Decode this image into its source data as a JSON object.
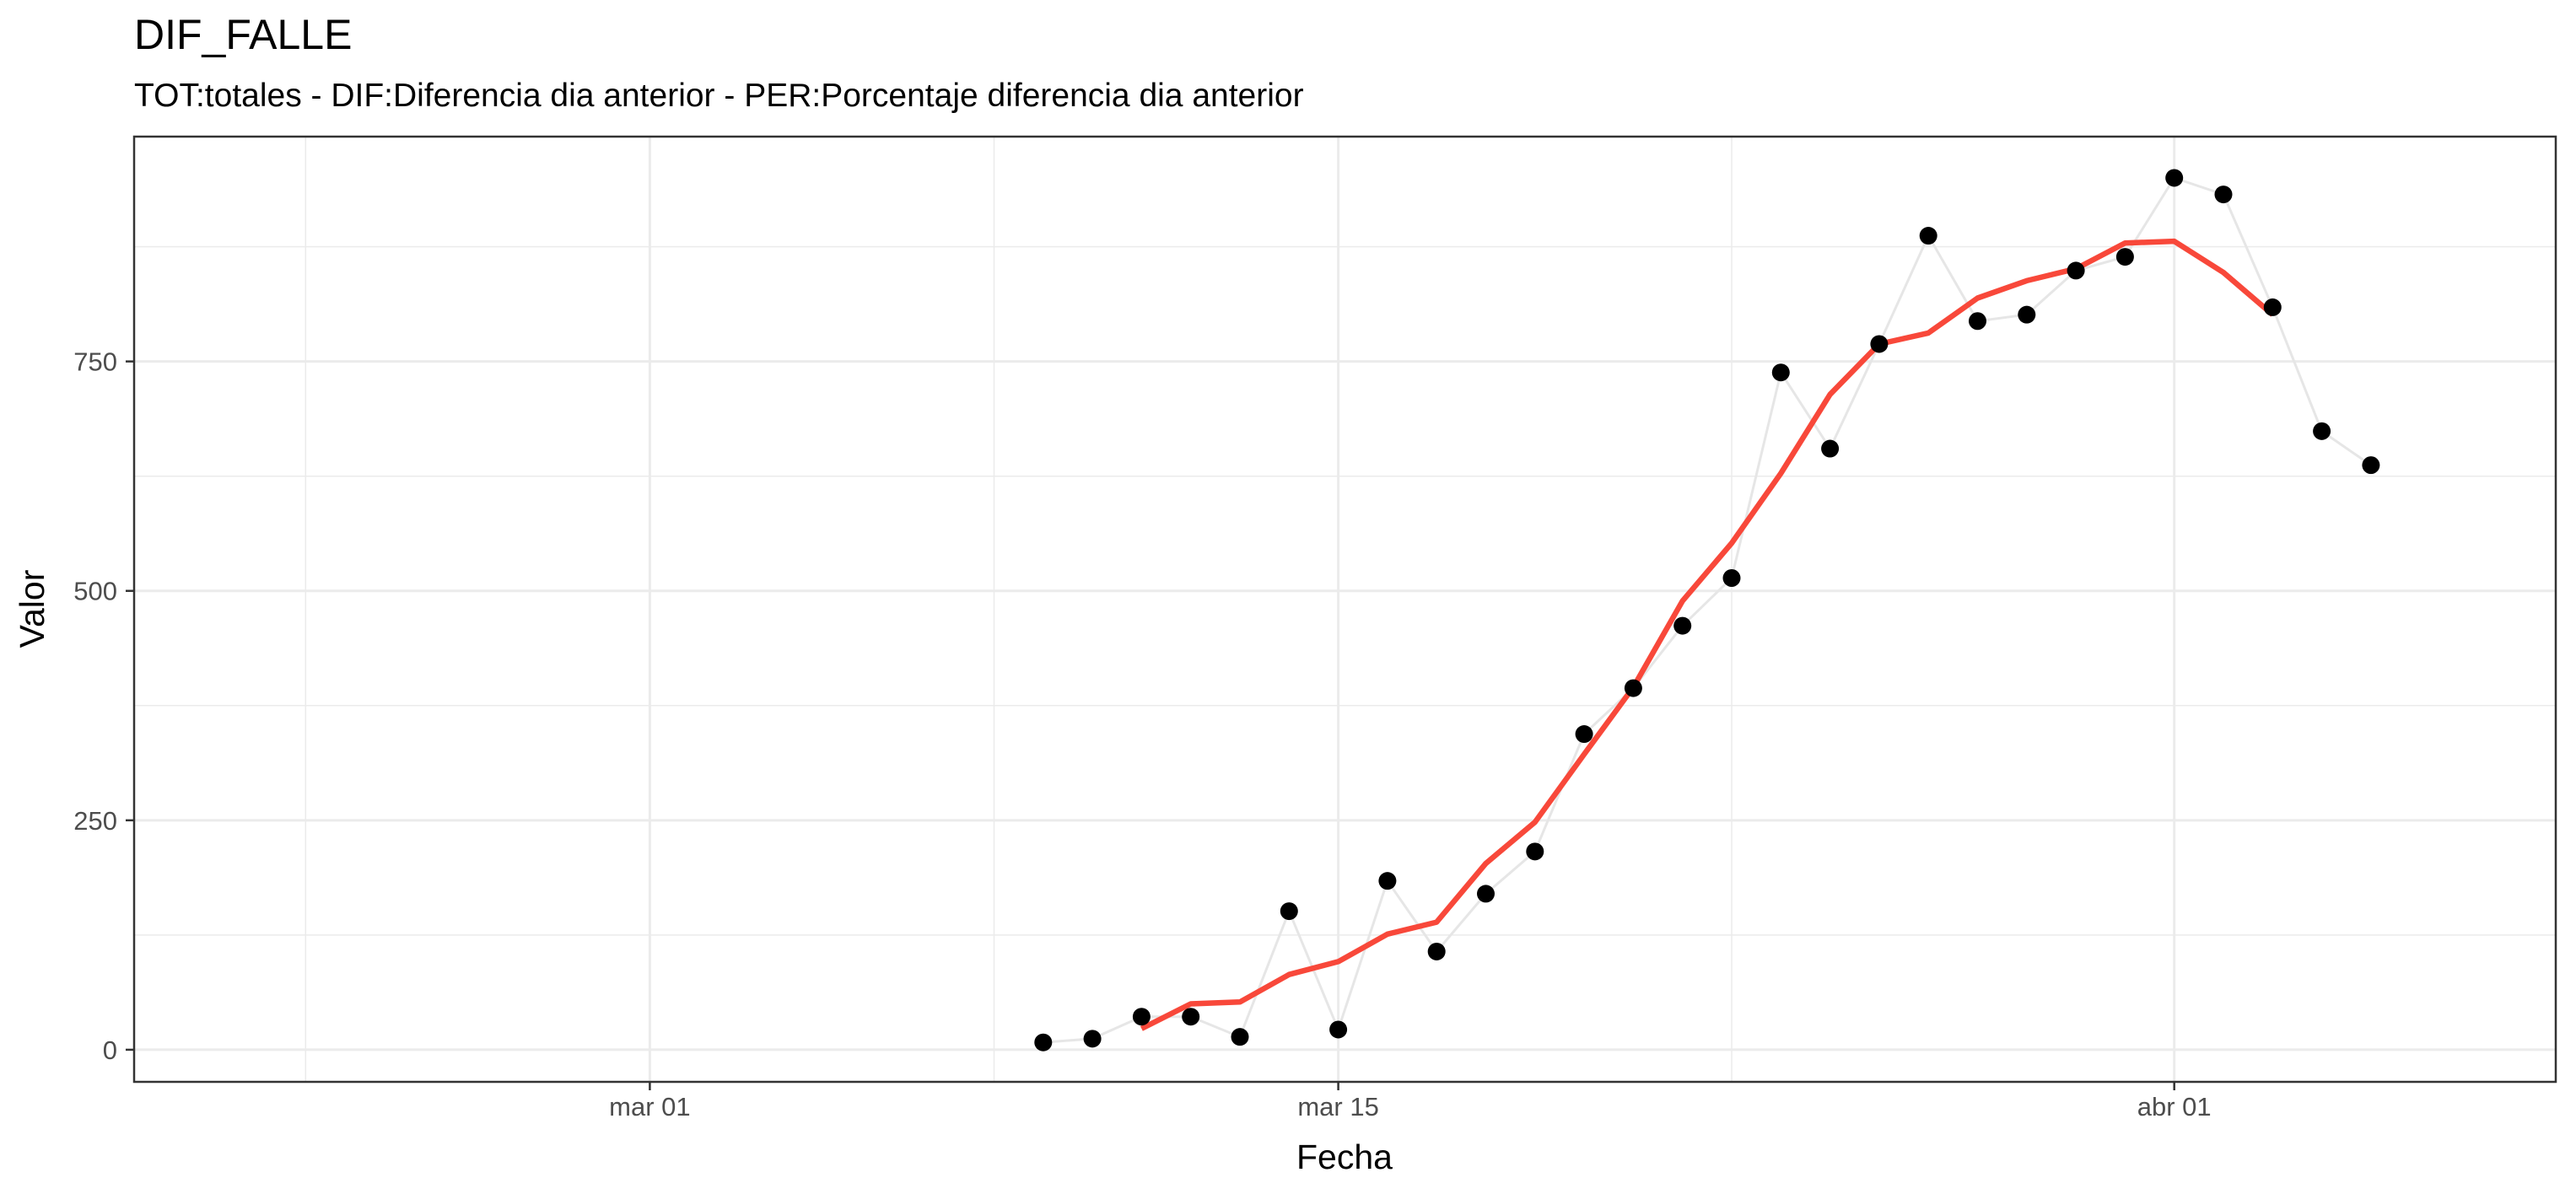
{
  "chart_data": {
    "type": "line",
    "title": "DIF_FALLE",
    "subtitle": "TOT:totales - DIF:Diferencia dia anterior - PER:Porcentaje diferencia dia anterior",
    "xlabel": "Fecha",
    "ylabel": "Valor",
    "x_ticks": [
      "mar 01",
      "mar 15",
      "abr 01"
    ],
    "y_ticks": [
      "0",
      "250",
      "500",
      "750"
    ],
    "ylim": [
      -35,
      995
    ],
    "grid": true,
    "series": [
      {
        "kind": "points",
        "color": "#000000",
        "points": [
          {
            "x": "2020-03-09",
            "y": 8
          },
          {
            "x": "2020-03-10",
            "y": 12
          },
          {
            "x": "2020-03-11",
            "y": 36
          },
          {
            "x": "2020-03-12",
            "y": 36
          },
          {
            "x": "2020-03-13",
            "y": 14
          },
          {
            "x": "2020-03-14",
            "y": 151
          },
          {
            "x": "2020-03-15",
            "y": 22
          },
          {
            "x": "2020-03-16",
            "y": 184
          },
          {
            "x": "2020-03-17",
            "y": 107
          },
          {
            "x": "2020-03-18",
            "y": 170
          },
          {
            "x": "2020-03-19",
            "y": 216
          },
          {
            "x": "2020-03-20",
            "y": 344
          },
          {
            "x": "2020-03-21",
            "y": 394
          },
          {
            "x": "2020-03-22",
            "y": 462
          },
          {
            "x": "2020-03-23",
            "y": 514
          },
          {
            "x": "2020-03-24",
            "y": 738
          },
          {
            "x": "2020-03-25",
            "y": 655
          },
          {
            "x": "2020-03-26",
            "y": 769
          },
          {
            "x": "2020-03-27",
            "y": 887
          },
          {
            "x": "2020-03-28",
            "y": 794
          },
          {
            "x": "2020-03-29",
            "y": 801
          },
          {
            "x": "2020-03-30",
            "y": 849
          },
          {
            "x": "2020-03-31",
            "y": 864
          },
          {
            "x": "2020-04-01",
            "y": 950
          },
          {
            "x": "2020-04-02",
            "y": 932
          },
          {
            "x": "2020-04-03",
            "y": 809
          },
          {
            "x": "2020-04-04",
            "y": 674
          },
          {
            "x": "2020-04-05",
            "y": 637
          }
        ]
      },
      {
        "kind": "line",
        "color": "#f8483a",
        "points": [
          {
            "x": "2020-03-11",
            "y": 23
          },
          {
            "x": "2020-03-12",
            "y": 50
          },
          {
            "x": "2020-03-13",
            "y": 52
          },
          {
            "x": "2020-03-14",
            "y": 82
          },
          {
            "x": "2020-03-15",
            "y": 96
          },
          {
            "x": "2020-03-16",
            "y": 126
          },
          {
            "x": "2020-03-17",
            "y": 139
          },
          {
            "x": "2020-03-18",
            "y": 203
          },
          {
            "x": "2020-03-19",
            "y": 248
          },
          {
            "x": "2020-03-20",
            "y": 322
          },
          {
            "x": "2020-03-21",
            "y": 395
          },
          {
            "x": "2020-03-22",
            "y": 489
          },
          {
            "x": "2020-03-23",
            "y": 552
          },
          {
            "x": "2020-03-24",
            "y": 628
          },
          {
            "x": "2020-03-25",
            "y": 714
          },
          {
            "x": "2020-03-26",
            "y": 769
          },
          {
            "x": "2020-03-27",
            "y": 781
          },
          {
            "x": "2020-03-28",
            "y": 819
          },
          {
            "x": "2020-03-29",
            "y": 838
          },
          {
            "x": "2020-03-30",
            "y": 851
          },
          {
            "x": "2020-03-31",
            "y": 879
          },
          {
            "x": "2020-04-01",
            "y": 881
          },
          {
            "x": "2020-04-02",
            "y": 847
          },
          {
            "x": "2020-04-03",
            "y": 801
          }
        ]
      }
    ]
  },
  "colors": {
    "points": "#000000",
    "connector": "#e6e6e6",
    "trend": "#f8483a",
    "grid": "#ebebeb",
    "panel_border": "#333333",
    "tick_text": "#4d4d4d"
  }
}
